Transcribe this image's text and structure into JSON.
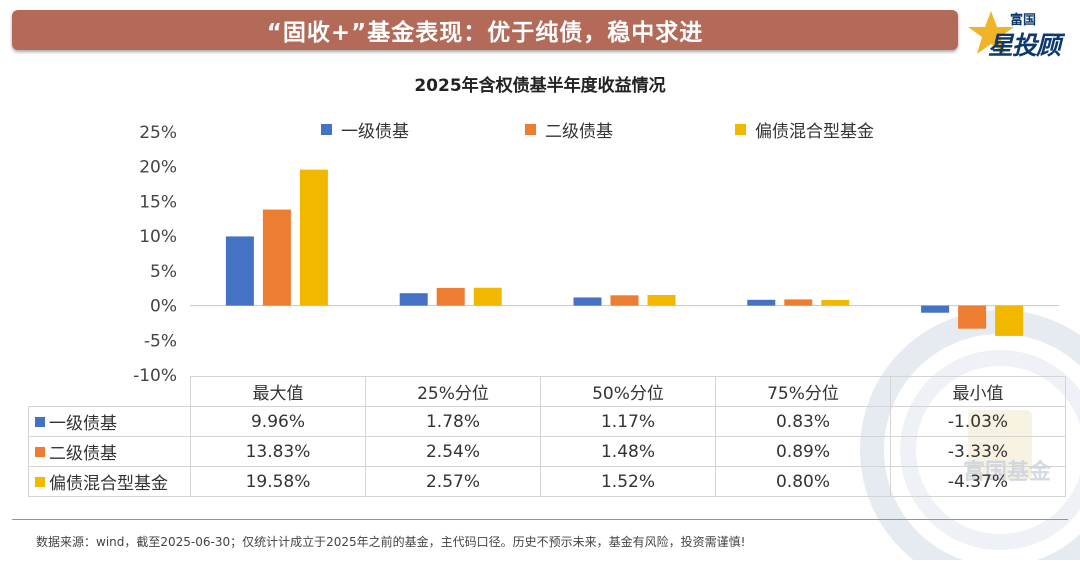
{
  "banner": {
    "title": "“固收+”基金表现：优于纯债，稳中求进"
  },
  "logo": {
    "top_text": "富国",
    "main_text": "星投顾"
  },
  "watermark": {
    "text": "富国基金"
  },
  "colors": {
    "series1": "#4472c4",
    "series2": "#ed7d31",
    "series3": "#f2b800",
    "banner": "#b36a58"
  },
  "chart_data": {
    "type": "bar",
    "title": "2025年含权债基半年度收益情况",
    "categories": [
      "最大值",
      "25%分位",
      "50%分位",
      "75%分位",
      "最小值"
    ],
    "series": [
      {
        "name": "一级债基",
        "values": [
          9.96,
          1.78,
          1.17,
          0.83,
          -1.03
        ],
        "labels": [
          "9.96%",
          "1.78%",
          "1.17%",
          "0.83%",
          "-1.03%"
        ]
      },
      {
        "name": "二级债基",
        "values": [
          13.83,
          2.54,
          1.48,
          0.89,
          -3.33
        ],
        "labels": [
          "13.83%",
          "2.54%",
          "1.48%",
          "0.89%",
          "-3.33%"
        ]
      },
      {
        "name": "偏债混合型基金",
        "values": [
          19.58,
          2.57,
          1.52,
          0.8,
          -4.37
        ],
        "labels": [
          "19.58%",
          "2.57%",
          "1.52%",
          "0.80%",
          "-4.37%"
        ]
      }
    ],
    "yticks": [
      "25%",
      "20%",
      "15%",
      "10%",
      "5%",
      "0%",
      "-5%",
      "-10%"
    ],
    "ylim": [
      -10,
      25
    ],
    "ylabel": "",
    "xlabel": "",
    "grid": false,
    "legend_position": "top",
    "data_table": true
  },
  "footer": {
    "note": "数据来源：wind，截至2025-06-30；仅统计计成立于2025年之前的基金，主代码口径。历史不预示未来，基金有风险，投资需谨慎!"
  }
}
